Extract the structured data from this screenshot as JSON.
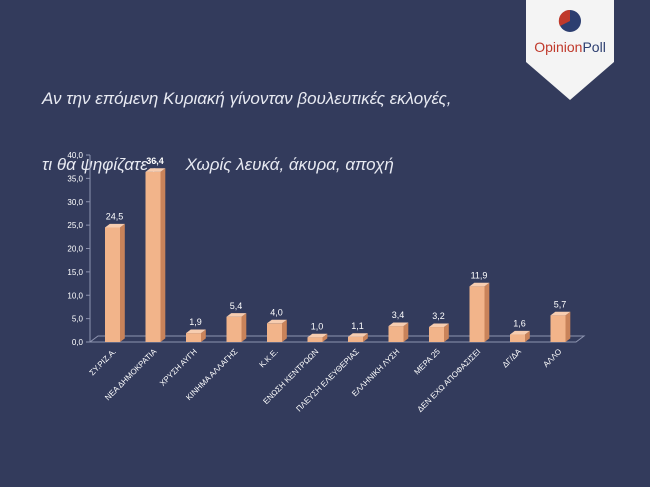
{
  "header": {
    "title_line1": "Αν την επόμενη Κυριακή γίνονταν βουλευτικές εκλογές,",
    "title_line2": "τι θα ψηφίζατε ;      Χωρίς λευκά, άκυρα, αποχή"
  },
  "brand": {
    "name_part1": "Opinion",
    "name_part2": "Poll",
    "color_primary": "#c0392b",
    "color_secondary": "#2c3e70"
  },
  "colors": {
    "background": "#333b5c",
    "bar_front": "#f2b48a",
    "bar_side": "#c9835a",
    "bar_top": "#f7cdb0",
    "text": "#ffffff"
  },
  "chart_data": {
    "type": "bar",
    "categories": [
      "ΣΥ.ΡΙΖ.Α.",
      "ΝΕΑ ΔΗΜΟΚΡΑΤΙΑ",
      "ΧΡΥΣΗ ΑΥΓΗ",
      "ΚΙΝΗΜΑ ΑΛΛΑΓΗΣ",
      "Κ.Κ.Ε.",
      "ΕΝΩΣΗ ΚΕΝΤΡΩΩΝ",
      "ΠΛΕΥΣΗ ΕΛΕΥΘΕΡΙΑΣ",
      "ΕΛΛΗΝΙΚΗ ΛΥΣΗ",
      "ΜΕΡΑ 25",
      "ΔΕΝ ΕΧΩ ΑΠΟΦΑΣΙΣΕΙ",
      "ΔΓ/ΔΑ",
      "ΑΛΛΟ"
    ],
    "values": [
      24.5,
      36.4,
      1.9,
      5.4,
      4.0,
      1.0,
      1.1,
      3.4,
      3.2,
      11.9,
      1.6,
      5.7
    ],
    "value_labels": [
      "24,5",
      "36,4",
      "1,9",
      "5,4",
      "4,0",
      "1,0",
      "1,1",
      "3,4",
      "3,2",
      "11,9",
      "1,6",
      "5,7"
    ],
    "y_ticks": [
      "0,0",
      "5,0",
      "10,0",
      "15,0",
      "20,0",
      "25,0",
      "30,0",
      "35,0",
      "40,0"
    ],
    "ylim": [
      0,
      40
    ],
    "grid": false,
    "title": "",
    "xlabel": "",
    "ylabel": ""
  }
}
